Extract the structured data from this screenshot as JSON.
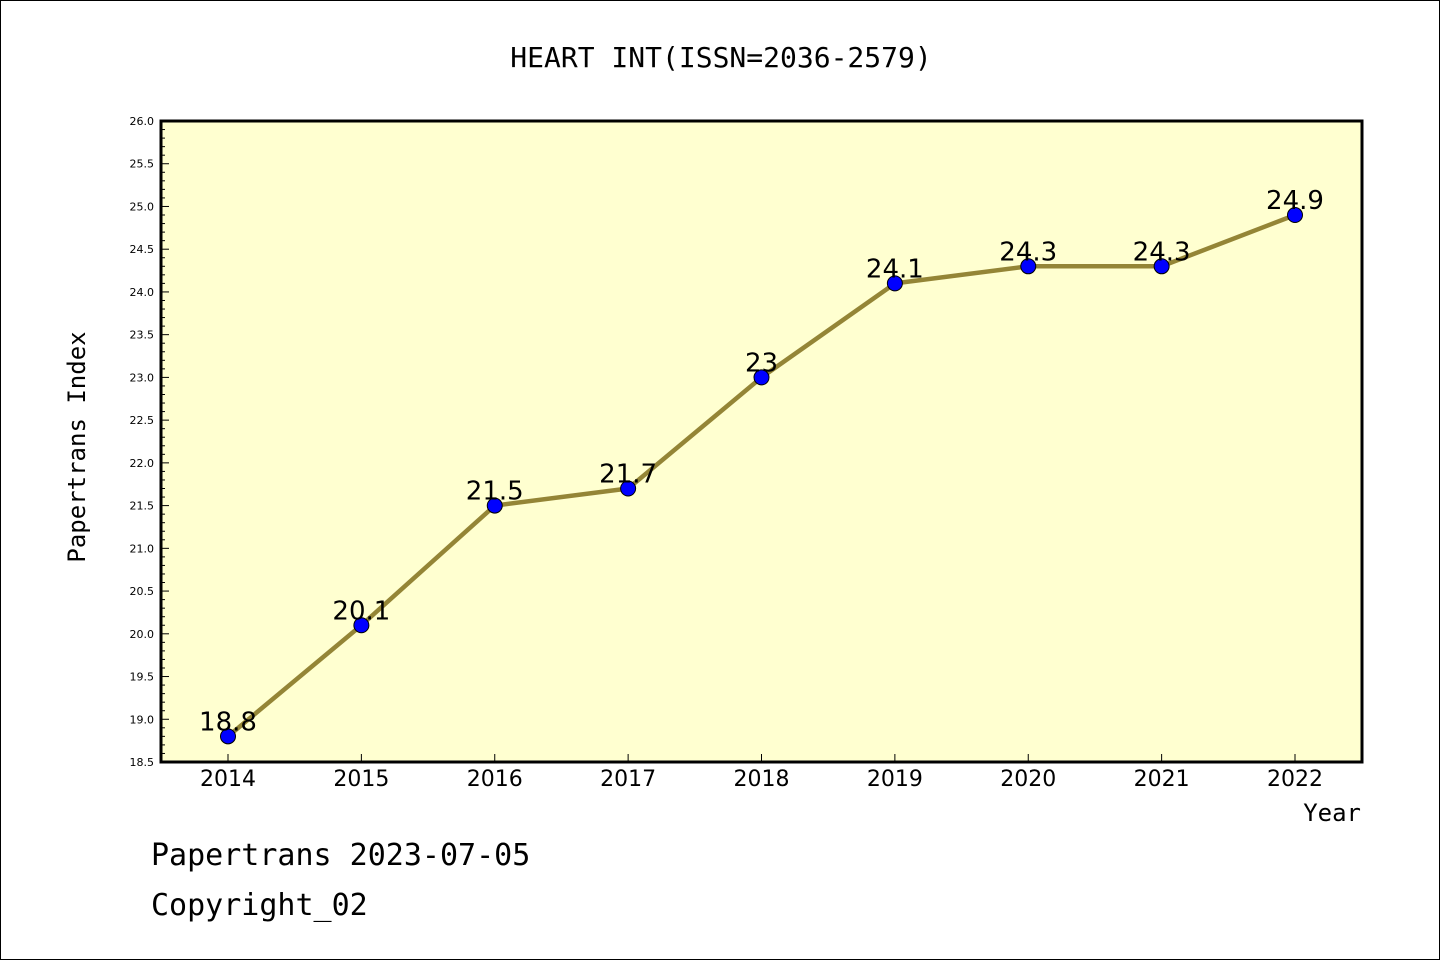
{
  "chart_data": {
    "type": "line",
    "title": "HEART INT(ISSN=2036-2579)",
    "xlabel": "Year",
    "ylabel": "Papertrans Index",
    "categories": [
      "2014",
      "2015",
      "2016",
      "2017",
      "2018",
      "2019",
      "2020",
      "2021",
      "2022"
    ],
    "values": [
      18.8,
      20.1,
      21.5,
      21.7,
      23,
      24.1,
      24.3,
      24.3,
      24.9
    ],
    "data_labels": [
      "18.8",
      "20.1",
      "21.5",
      "21.7",
      "23",
      "24.1",
      "24.3",
      "24.3",
      "24.9"
    ],
    "ylim": [
      18.5,
      26.0
    ],
    "yticks": [
      "18.5",
      "19.0",
      "19.5",
      "20.0",
      "20.5",
      "21.0",
      "21.5",
      "22.0",
      "22.5",
      "23.0",
      "23.5",
      "24.0",
      "24.5",
      "25.0",
      "25.5",
      "26.0"
    ],
    "grid": false,
    "colors": {
      "plot_background": "#ffffd0",
      "line": "#948536",
      "marker": "#0000ff"
    }
  },
  "footer": {
    "line1": "Papertrans 2023-07-05",
    "line2": "Copyright_02"
  }
}
